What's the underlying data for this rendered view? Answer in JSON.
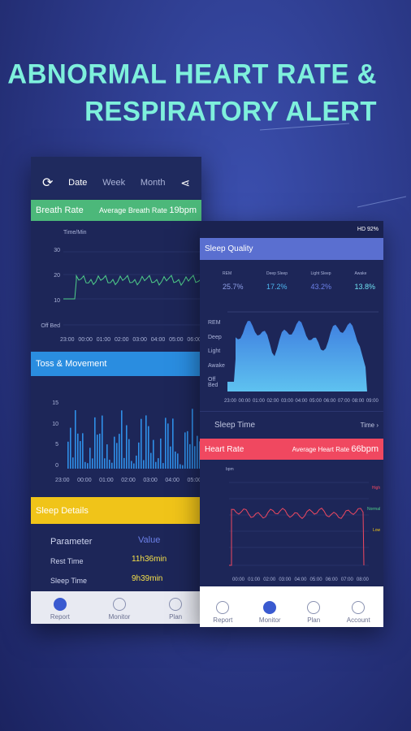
{
  "headline": {
    "line1": "ABNORMAL HEART RATE &",
    "line2": "RESPIRATORY ALERT"
  },
  "left_phone": {
    "tabs": [
      "Date",
      "Week",
      "Month"
    ],
    "breath_rate": {
      "title": "Breath Rate",
      "average_label": "Average Breath Rate",
      "average_value": "19bpm",
      "y_title": "Time/Min",
      "yticks": [
        "30",
        "20",
        "10",
        "Off Bed"
      ],
      "xticks": [
        "23:00",
        "00:00",
        "01:00",
        "02:00",
        "03:00",
        "04:00",
        "05:00",
        "06:00"
      ]
    },
    "toss_movement": {
      "title": "Toss & Movement",
      "yticks": [
        "15",
        "10",
        "5",
        "0"
      ],
      "xticks": [
        "23:00",
        "00:00",
        "01:00",
        "02:00",
        "03:00",
        "04:00",
        "05:00"
      ]
    },
    "sleep_details": {
      "title": "Sleep Details",
      "header": [
        "Parameter",
        "Value"
      ],
      "rows": [
        [
          "Rest Time",
          "11h36min"
        ],
        [
          "Sleep Time",
          "9h39min"
        ]
      ]
    },
    "nav": [
      "Report",
      "Monitor",
      "Plan"
    ]
  },
  "right_phone": {
    "status": "HD 92%",
    "sleep_quality": {
      "title": "Sleep Quality",
      "legend": [
        {
          "name": "REM",
          "value": "25.7%"
        },
        {
          "name": "Deep Sleep",
          "value": "17.2%"
        },
        {
          "name": "Light Sleep",
          "value": "43.2%"
        },
        {
          "name": "Awake",
          "value": "13.8%"
        }
      ],
      "ylabels": [
        "REM",
        "Deep",
        "Light",
        "Awake",
        "Off Bed"
      ],
      "xticks": [
        "23:00",
        "00:00",
        "01:00",
        "02:00",
        "03:00",
        "04:00",
        "05:00",
        "06:00",
        "07:00",
        "08:00",
        "09:00"
      ]
    },
    "sleep_time": {
      "label": "Sleep Time",
      "value": "Time"
    },
    "heart_rate": {
      "title": "Heart Rate",
      "average_label": "Average Heart Rate",
      "average_value": "66bpm",
      "y_title": "bpm",
      "zones": [
        "High",
        "Normal",
        "Low"
      ],
      "xticks": [
        "00:00",
        "01:00",
        "02:00",
        "03:00",
        "04:00",
        "05:00",
        "06:00",
        "07:00",
        "08:00"
      ]
    },
    "nav": [
      "Report",
      "Monitor",
      "Plan",
      "Account"
    ]
  }
}
